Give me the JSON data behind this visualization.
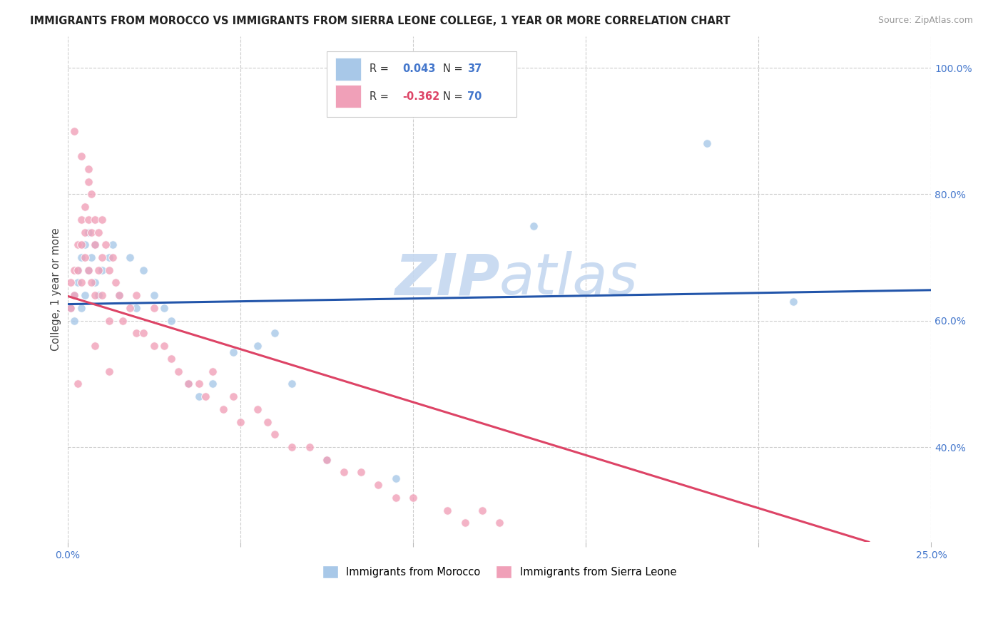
{
  "title": "IMMIGRANTS FROM MOROCCO VS IMMIGRANTS FROM SIERRA LEONE COLLEGE, 1 YEAR OR MORE CORRELATION CHART",
  "source": "Source: ZipAtlas.com",
  "ylabel": "College, 1 year or more",
  "xlim": [
    0.0,
    0.25
  ],
  "ylim": [
    0.25,
    1.05
  ],
  "x_ticks": [
    0.0,
    0.05,
    0.1,
    0.15,
    0.2,
    0.25
  ],
  "x_tick_labels": [
    "0.0%",
    "",
    "",
    "",
    "",
    "25.0%"
  ],
  "y_ticks_right": [
    0.4,
    0.6,
    0.8,
    1.0
  ],
  "y_tick_labels_right": [
    "40.0%",
    "60.0%",
    "80.0%",
    "100.0%"
  ],
  "background_color": "#ffffff",
  "grid_color": "#cccccc",
  "blue_color": "#a8c8e8",
  "pink_color": "#f0a0b8",
  "blue_line_color": "#2255aa",
  "pink_line_color": "#dd4466",
  "watermark_color": "#c5d8f0",
  "scatter_size": 70,
  "morocco_x": [
    0.001,
    0.002,
    0.002,
    0.003,
    0.003,
    0.004,
    0.004,
    0.005,
    0.005,
    0.006,
    0.006,
    0.007,
    0.008,
    0.008,
    0.009,
    0.01,
    0.012,
    0.013,
    0.015,
    0.018,
    0.02,
    0.022,
    0.025,
    0.028,
    0.03,
    0.035,
    0.038,
    0.042,
    0.048,
    0.055,
    0.065,
    0.075,
    0.095,
    0.135,
    0.185,
    0.21,
    0.06
  ],
  "morocco_y": [
    0.62,
    0.64,
    0.6,
    0.66,
    0.68,
    0.62,
    0.7,
    0.64,
    0.72,
    0.68,
    0.74,
    0.7,
    0.66,
    0.72,
    0.64,
    0.68,
    0.7,
    0.72,
    0.64,
    0.7,
    0.62,
    0.68,
    0.64,
    0.62,
    0.6,
    0.5,
    0.48,
    0.5,
    0.55,
    0.56,
    0.5,
    0.38,
    0.35,
    0.75,
    0.88,
    0.63,
    0.58
  ],
  "sierraleone_x": [
    0.001,
    0.001,
    0.002,
    0.002,
    0.003,
    0.003,
    0.004,
    0.004,
    0.004,
    0.005,
    0.005,
    0.005,
    0.006,
    0.006,
    0.006,
    0.007,
    0.007,
    0.007,
    0.008,
    0.008,
    0.008,
    0.009,
    0.009,
    0.01,
    0.01,
    0.01,
    0.011,
    0.012,
    0.012,
    0.013,
    0.014,
    0.015,
    0.016,
    0.018,
    0.02,
    0.02,
    0.022,
    0.025,
    0.025,
    0.028,
    0.03,
    0.032,
    0.035,
    0.038,
    0.04,
    0.042,
    0.045,
    0.048,
    0.05,
    0.055,
    0.058,
    0.06,
    0.065,
    0.07,
    0.075,
    0.08,
    0.085,
    0.09,
    0.095,
    0.1,
    0.11,
    0.115,
    0.12,
    0.125,
    0.002,
    0.004,
    0.006,
    0.008,
    0.003,
    0.012
  ],
  "sierraleone_y": [
    0.66,
    0.62,
    0.68,
    0.64,
    0.72,
    0.68,
    0.76,
    0.72,
    0.66,
    0.78,
    0.74,
    0.7,
    0.82,
    0.76,
    0.68,
    0.8,
    0.74,
    0.66,
    0.76,
    0.72,
    0.64,
    0.74,
    0.68,
    0.76,
    0.7,
    0.64,
    0.72,
    0.68,
    0.6,
    0.7,
    0.66,
    0.64,
    0.6,
    0.62,
    0.58,
    0.64,
    0.58,
    0.56,
    0.62,
    0.56,
    0.54,
    0.52,
    0.5,
    0.5,
    0.48,
    0.52,
    0.46,
    0.48,
    0.44,
    0.46,
    0.44,
    0.42,
    0.4,
    0.4,
    0.38,
    0.36,
    0.36,
    0.34,
    0.32,
    0.32,
    0.3,
    0.28,
    0.3,
    0.28,
    0.9,
    0.86,
    0.84,
    0.56,
    0.5,
    0.52
  ],
  "blue_r_val": "0.043",
  "blue_n_val": "37",
  "pink_r_val": "-0.362",
  "pink_n_val": "70",
  "R_morocco": 0.043,
  "R_sierra": -0.362
}
